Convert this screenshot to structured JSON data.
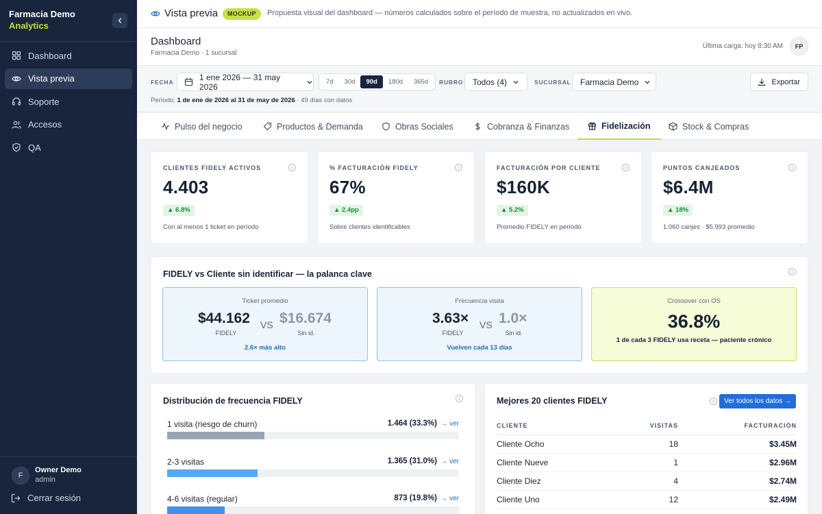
{
  "app": {
    "name": "Farmacia Demo",
    "product": "Analytics"
  },
  "sidebar": {
    "items": [
      {
        "label": "Dashboard",
        "icon": "grid-icon",
        "active": false
      },
      {
        "label": "Vista previa",
        "icon": "eye-icon",
        "active": true
      },
      {
        "label": "Soporte",
        "icon": "headset-icon",
        "active": false
      },
      {
        "label": "Accesos",
        "icon": "users-icon",
        "active": false
      },
      {
        "label": "QA",
        "icon": "shield-icon",
        "active": false
      }
    ],
    "user": {
      "initial": "F",
      "name": "Owner Demo",
      "role": "admin"
    },
    "logout_label": "Cerrar sesión"
  },
  "topbar": {
    "title": "Vista previa",
    "badge": "MOCKUP",
    "description": "Propuesta visual del dashboard — números calculados sobre el período de muestra, no actualizados en vivo."
  },
  "header": {
    "title": "Dashboard",
    "subtitle": "Farmacia Demo · 1 sucursal",
    "last_load": "Última carga: hoy 8:30 AM",
    "avatar_initials": "FP"
  },
  "filters": {
    "date_label": "FECHA",
    "date_value": "1 ene 2026 — 31 may 2026",
    "ranges": [
      "7d",
      "30d",
      "90d",
      "180d",
      "365d"
    ],
    "active_range": "90d",
    "category_label": "RUBRO",
    "category_value": "Todos (4)",
    "branch_label": "SUCURSAL",
    "branch_value": "Farmacia Demo",
    "export_label": "Exportar",
    "period_prefix": "Período:",
    "period_range": "1 de ene de 2026 al 31 de may de 2026",
    "period_suffix": "· 49 días con datos"
  },
  "tabs": [
    {
      "label": "Pulso del negocio",
      "icon": "activity-icon"
    },
    {
      "label": "Productos & Demanda",
      "icon": "tag-icon"
    },
    {
      "label": "Obras Sociales",
      "icon": "shield-icon"
    },
    {
      "label": "Cobranza & Finanzas",
      "icon": "dollar-icon"
    },
    {
      "label": "Fidelización",
      "icon": "gift-icon"
    },
    {
      "label": "Stock & Compras",
      "icon": "box-icon"
    }
  ],
  "active_tab": "Fidelización",
  "kpis": [
    {
      "label": "CLIENTES FIDELY ACTIVOS",
      "value": "4.403",
      "delta": "▲ 6.8%",
      "note": "Con al menos 1 ticket en período"
    },
    {
      "label": "% FACTURACIÓN FIDELY",
      "value": "67%",
      "delta": "▲ 2.4pp",
      "note": "Sobre clientes identificables"
    },
    {
      "label": "FACTURACIÓN POR CLIENTE",
      "value": "$160K",
      "delta": "▲ 5.2%",
      "note": "Promedio FIDELY en período"
    },
    {
      "label": "PUNTOS CANJEADOS",
      "value": "$6.4M",
      "delta": "▲ 18%",
      "note": "1.060 canjes · $5.993 promedio"
    }
  ],
  "comparison": {
    "title": "FIDELY vs Cliente sin identificar — la palanca clave",
    "ticket": {
      "title": "Ticket promedio",
      "fidely_value": "$44.162",
      "fidely_label": "FIDELY",
      "vs": "VS",
      "other_value": "$16.674",
      "other_label": "Sin id.",
      "footer": "2.6× más alto"
    },
    "frequency": {
      "title": "Frecuencia visita",
      "fidely_value": "3.63×",
      "fidely_label": "FIDELY",
      "vs": "VS",
      "other_value": "1.0×",
      "other_label": "Sin id.",
      "footer": "Vuelven cada 13 días"
    },
    "crossover": {
      "title": "Crossover con OS",
      "value": "36.8%",
      "footer": "1 de cada 3 FIDELY usa receta — paciente crónico"
    }
  },
  "distribution": {
    "title": "Distribución de frecuencia FIDELY",
    "rows": [
      {
        "label": "1 visita (riesgo de churn)",
        "value": "1.464 (33.3%)",
        "pct": 33.3,
        "color": "#98a4b4",
        "link": "→ ver"
      },
      {
        "label": "2-3 visitas",
        "value": "1.365 (31.0%)",
        "pct": 31.0,
        "color": "#5aa7ef",
        "link": "→ ver"
      },
      {
        "label": "4-6 visitas (regular)",
        "value": "873 (19.8%)",
        "pct": 19.8,
        "color": "#3f92e6",
        "link": "→ ver"
      }
    ]
  },
  "top_clients": {
    "title": "Mejores 20 clientes FIDELY",
    "see_all": "Ver todos los datos →",
    "columns": [
      "CLIENTE",
      "VISITAS",
      "FACTURACIÓN"
    ],
    "rows": [
      [
        "Cliente Ocho",
        "18",
        "$3.45M"
      ],
      [
        "Cliente Nueve",
        "1",
        "$2.96M"
      ],
      [
        "Cliente Diez",
        "4",
        "$2.74M"
      ],
      [
        "Cliente Uno",
        "12",
        "$2.49M"
      ]
    ]
  }
}
